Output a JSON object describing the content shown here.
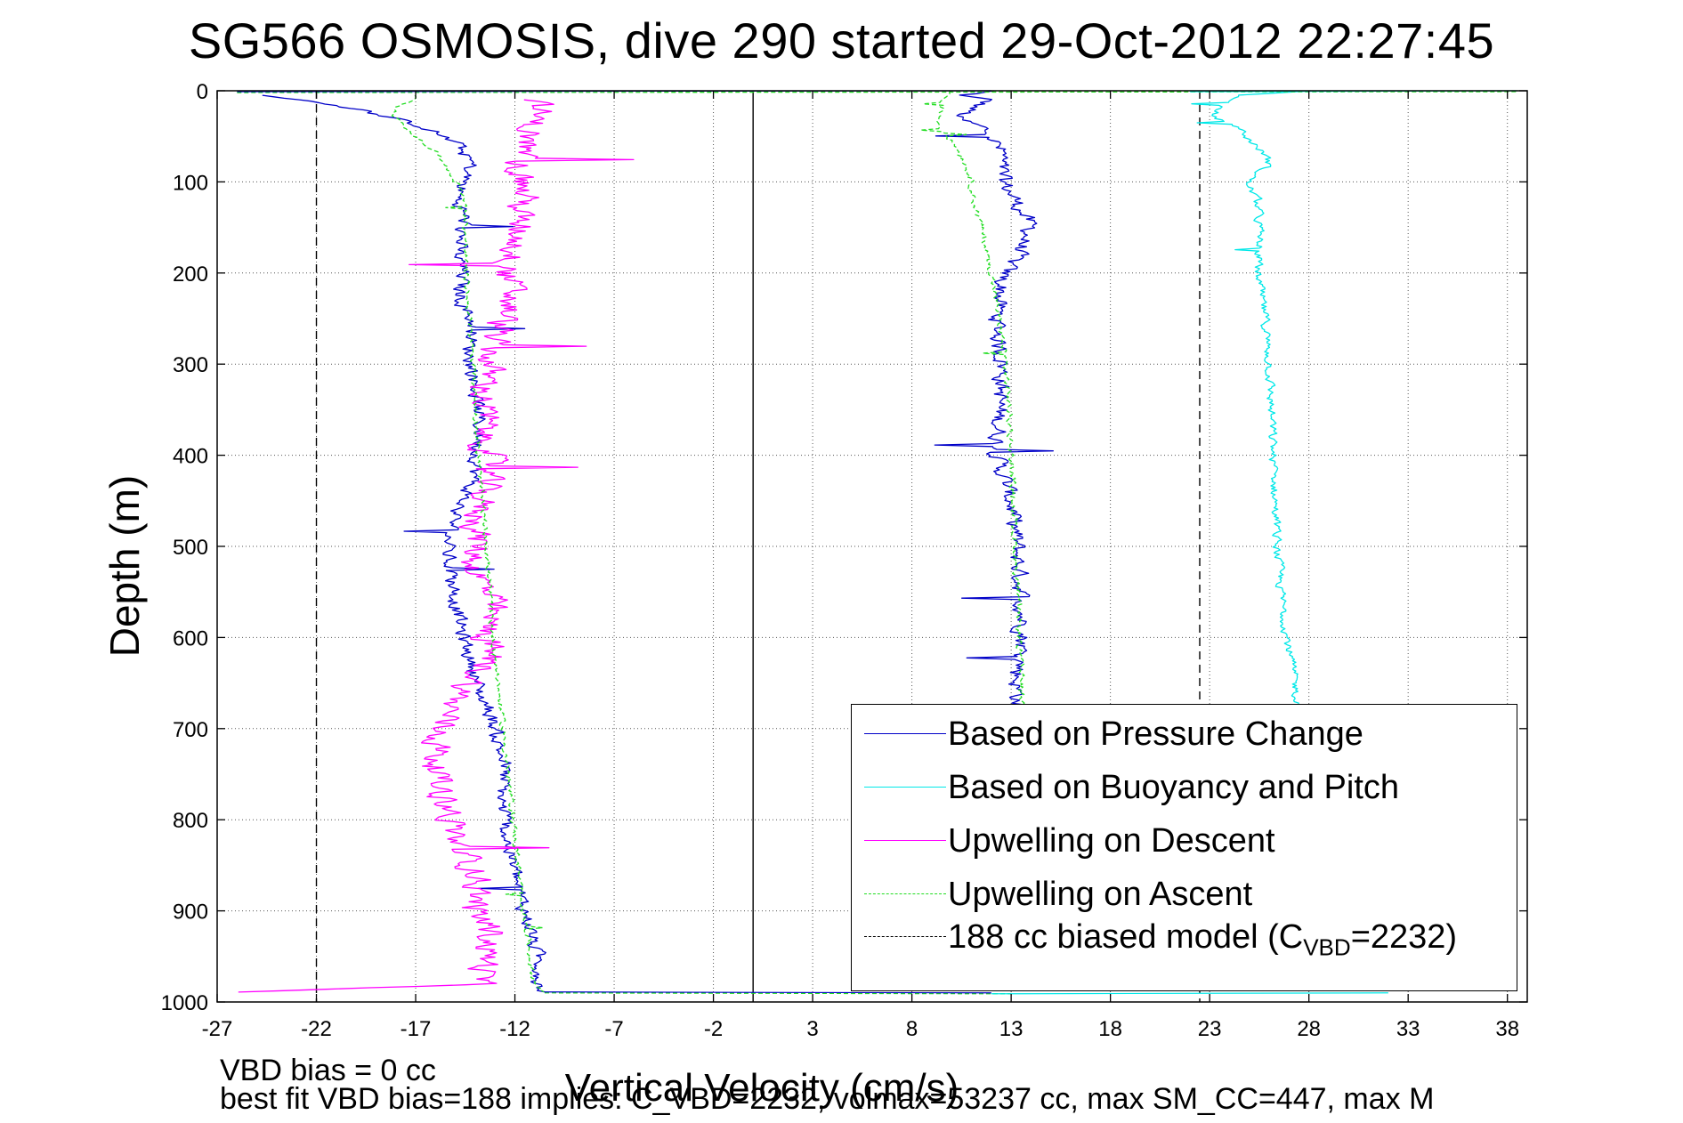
{
  "chart_data": {
    "type": "line",
    "title": "SG566 OSMOSIS, dive 290 started 29-Oct-2012 22:27:45",
    "xlabel": "Vertical Velocity (cm/s)",
    "ylabel": "Depth (m)",
    "xlim": [
      -27,
      39
    ],
    "ylim": [
      1000,
      0
    ],
    "y_reversed": true,
    "xticks": [
      -27,
      -22,
      -17,
      -12,
      -7,
      -2,
      3,
      8,
      13,
      18,
      23,
      28,
      33,
      38
    ],
    "yticks": [
      0,
      100,
      200,
      300,
      400,
      500,
      600,
      700,
      800,
      900,
      1000
    ],
    "grid": true,
    "legend_position": "bottom-right",
    "reference_lines": [
      {
        "x": 0,
        "style": "solid",
        "color": "#000000"
      },
      {
        "x": -22,
        "style": "dashed",
        "color": "#000000"
      },
      {
        "x": 22.5,
        "style": "dashed",
        "color": "#000000"
      }
    ],
    "series": [
      {
        "name": "Based on Pressure Change",
        "color": "#0000c8",
        "style": "solid",
        "noise": 0.7,
        "depth": [
          0,
          5,
          10,
          20,
          30,
          40,
          50,
          60,
          70,
          80,
          100,
          120,
          150,
          180,
          200,
          250,
          280,
          300,
          350,
          400,
          450,
          500,
          550,
          600,
          650,
          690
        ],
        "x": [
          12.0,
          10.5,
          11.8,
          11.0,
          10.2,
          11.5,
          12.0,
          12.3,
          12.6,
          12.4,
          12.6,
          13.2,
          14.0,
          13.3,
          12.6,
          12.3,
          12.4,
          12.6,
          12.4,
          12.3,
          13.0,
          13.3,
          13.5,
          13.6,
          13.3,
          13.4
        ]
      },
      {
        "name": "Based on Pressure Change",
        "color": "#0000c8",
        "style": "solid",
        "noise": 0.6,
        "depth": [
          990,
          980,
          960,
          940,
          920,
          900,
          880,
          860,
          840,
          820,
          800,
          780,
          760,
          740,
          720,
          700,
          680,
          660,
          640,
          620,
          600,
          580,
          560,
          540,
          520,
          500,
          480,
          460,
          440,
          420,
          400,
          380,
          360,
          340,
          320,
          300,
          280,
          260,
          240,
          220,
          200,
          180,
          160,
          140,
          120,
          100,
          80,
          60,
          40,
          20,
          10,
          5
        ],
        "x": [
          -10.5,
          -10.8,
          -10.7,
          -11.0,
          -11.2,
          -11.5,
          -11.8,
          -12.0,
          -12.2,
          -12.4,
          -12.5,
          -12.7,
          -12.6,
          -12.5,
          -12.8,
          -13.0,
          -13.3,
          -13.8,
          -14.0,
          -14.3,
          -14.6,
          -14.8,
          -15.0,
          -15.1,
          -15.3,
          -15.4,
          -15.2,
          -14.9,
          -14.4,
          -14.0,
          -13.9,
          -13.8,
          -13.8,
          -13.9,
          -14.0,
          -14.2,
          -14.3,
          -14.0,
          -14.5,
          -14.8,
          -14.6,
          -14.9,
          -14.7,
          -14.5,
          -14.9,
          -14.6,
          -14.2,
          -14.8,
          -16.5,
          -20.0,
          -22.5,
          -25.0
        ]
      },
      {
        "name": "Based on Buoyancy and Pitch",
        "color": "#00e8e8",
        "style": "solid",
        "noise": 0.35,
        "depth": [
          0,
          5,
          15,
          30,
          40,
          50,
          60,
          70,
          80,
          100,
          120,
          150,
          180,
          200,
          250,
          300,
          350,
          400,
          450,
          500,
          550,
          600,
          650,
          680
        ],
        "x": [
          28.0,
          24.5,
          23.5,
          23.2,
          24.5,
          24.8,
          25.3,
          25.8,
          26.0,
          24.9,
          25.4,
          25.5,
          25.5,
          25.4,
          25.8,
          26.0,
          26.1,
          26.2,
          26.3,
          26.4,
          26.6,
          26.9,
          27.3,
          27.5
        ]
      },
      {
        "name": "Upwelling on Descent",
        "color": "#ff00ff",
        "style": "solid",
        "noise": 1.2,
        "depth": [
          990,
          980,
          960,
          940,
          920,
          900,
          880,
          860,
          840,
          820,
          800,
          780,
          760,
          740,
          720,
          700,
          680,
          660,
          640,
          620,
          600,
          580,
          560,
          540,
          520,
          500,
          480,
          460,
          440,
          420,
          400,
          380,
          360,
          340,
          320,
          300,
          280,
          260,
          240,
          220,
          200,
          180,
          160,
          140,
          120,
          100,
          80,
          60,
          40,
          20,
          10
        ],
        "x": [
          -26.0,
          -13.8,
          -13.5,
          -13.3,
          -13.2,
          -14.0,
          -13.9,
          -13.8,
          -14.5,
          -15.0,
          -15.2,
          -15.4,
          -15.8,
          -15.9,
          -15.9,
          -15.7,
          -15.3,
          -14.8,
          -13.8,
          -13.2,
          -13.5,
          -13.3,
          -13.2,
          -13.6,
          -14.1,
          -13.9,
          -13.9,
          -13.8,
          -13.6,
          -13.4,
          -13.3,
          -13.6,
          -13.5,
          -13.6,
          -13.4,
          -13.3,
          -13.2,
          -12.8,
          -12.3,
          -12.2,
          -12.4,
          -12.1,
          -11.7,
          -11.9,
          -11.5,
          -11.6,
          -11.8,
          -11.5,
          -11.2,
          -10.8,
          -11.0
        ]
      },
      {
        "name": "Upwelling on Ascent",
        "color": "#22dd22",
        "style": "dashed",
        "noise": 0.22,
        "depth": [
          990,
          980,
          960,
          940,
          920,
          900,
          860,
          820,
          780,
          740,
          700,
          660,
          620,
          580,
          540,
          500,
          460,
          420,
          380,
          340,
          300,
          260,
          220,
          180,
          140,
          110,
          90,
          70,
          60,
          50,
          40,
          30,
          20,
          10,
          5
        ],
        "x": [
          -10.5,
          -11.0,
          -11.2,
          -11.3,
          -11.4,
          -11.6,
          -11.8,
          -12.0,
          -12.2,
          -12.4,
          -12.6,
          -12.8,
          -13.0,
          -13.2,
          -13.3,
          -13.4,
          -13.6,
          -13.8,
          -13.9,
          -14.0,
          -14.1,
          -14.3,
          -14.4,
          -14.5,
          -14.5,
          -14.6,
          -15.3,
          -15.8,
          -16.5,
          -17.0,
          -17.6,
          -18.0,
          -18.2,
          -17.2,
          -17.0
        ]
      },
      {
        "name": "Upwelling on Ascent",
        "color": "#22dd22",
        "style": "dashed",
        "noise": 0.25,
        "depth": [
          0,
          10,
          20,
          30,
          40,
          60,
          80,
          100,
          120,
          150,
          200,
          250,
          300,
          350,
          400,
          450,
          500,
          550,
          600,
          650,
          690
        ],
        "x": [
          10.0,
          9.6,
          9.5,
          9.4,
          9.4,
          10.2,
          10.7,
          11.0,
          11.1,
          11.5,
          12.0,
          12.4,
          12.7,
          12.9,
          13.0,
          13.1,
          13.2,
          13.3,
          13.4,
          13.5,
          13.6
        ]
      }
    ]
  },
  "legend": {
    "items": [
      {
        "label": "Based on Pressure Change",
        "color": "#0000c8",
        "dash": "none"
      },
      {
        "label": "Based on Buoyancy and Pitch",
        "color": "#00e8e8",
        "dash": "none"
      },
      {
        "label": "Upwelling on Descent",
        "color": "#ff00ff",
        "dash": "none"
      },
      {
        "label": "Upwelling on Ascent",
        "color": "#22dd22",
        "dash": "6,4"
      }
    ],
    "model_prefix": "188 cc biased model (C",
    "model_sub": "VBD",
    "model_suffix": "=2232)"
  },
  "footer": {
    "line1": "VBD bias = 0 cc",
    "line2": "best fit VBD bias=188 implies: C_VBD=2232, volmax=53237 cc, max SM_CC=447, max M"
  }
}
